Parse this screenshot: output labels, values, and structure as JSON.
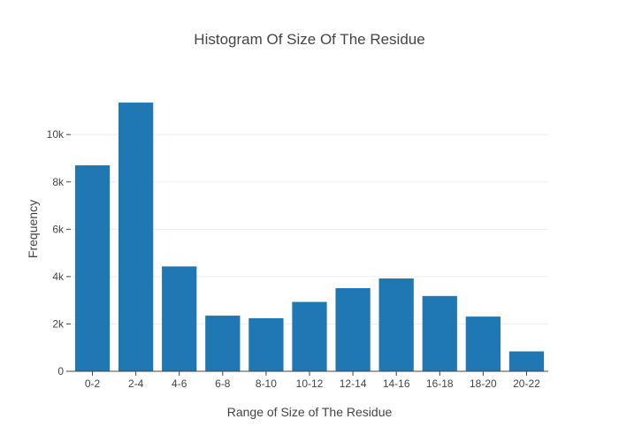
{
  "chart_data": {
    "type": "bar",
    "title": "Histogram Of Size Of The Residue",
    "xlabel": "Range of Size of The Residue",
    "ylabel": "Frequency",
    "categories": [
      "0-2",
      "2-4",
      "4-6",
      "6-8",
      "8-10",
      "10-12",
      "12-14",
      "14-16",
      "16-18",
      "18-20",
      "20-22"
    ],
    "values": [
      8700,
      11350,
      4430,
      2350,
      2240,
      2930,
      3510,
      3920,
      3180,
      2310,
      840
    ],
    "ylim": [
      0,
      11950
    ],
    "yticks": [
      0,
      2000,
      4000,
      6000,
      8000,
      10000
    ],
    "ytick_labels": [
      "0",
      "2k",
      "4k",
      "6k",
      "8k",
      "10k"
    ],
    "grid": true,
    "bar_color": "#1f77b4"
  }
}
